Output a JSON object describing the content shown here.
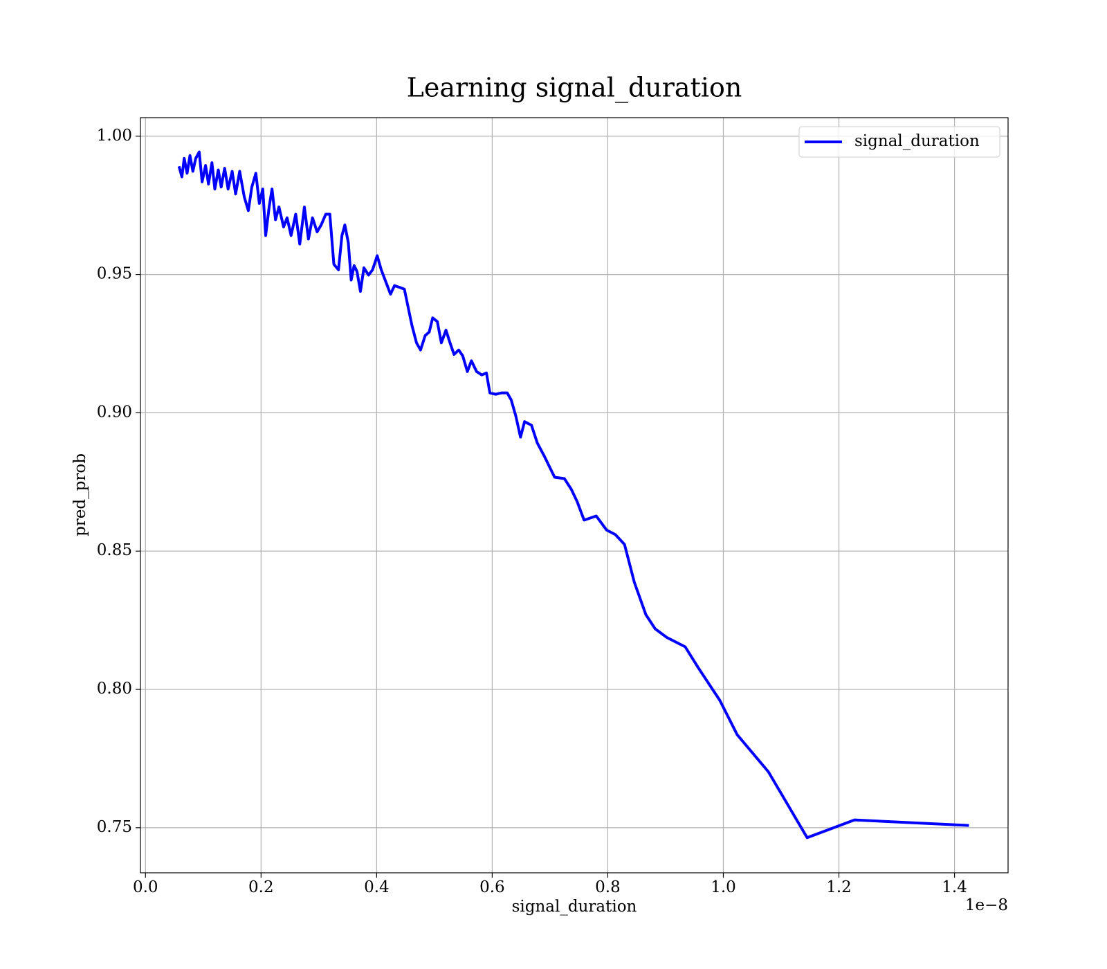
{
  "chart_data": {
    "type": "line",
    "title": "Learning signal_duration",
    "xlabel": "signal_duration",
    "ylabel": "pred_prob",
    "x_offset_label": "1e−8",
    "xlim": [
      -0.0087,
      1.4927
    ],
    "ylim": [
      0.7337,
      1.0067
    ],
    "xticks": [
      {
        "value": 0,
        "label": "0.0"
      },
      0.2,
      0.4,
      0.6,
      0.8,
      {
        "value": 1,
        "label": "1.0"
      },
      1.2,
      1.4
    ],
    "yticks": [
      0.75,
      {
        "value": 0.8,
        "label": "0.80"
      },
      0.85,
      {
        "value": 0.9,
        "label": "0.90"
      },
      0.95,
      {
        "value": 1,
        "label": "1.00"
      }
    ],
    "grid": true,
    "legend": "upper right",
    "x": [
      0.058,
      0.063,
      0.067,
      0.072,
      0.077,
      0.082,
      0.087,
      0.093,
      0.098,
      0.104,
      0.109,
      0.115,
      0.12,
      0.126,
      0.131,
      0.137,
      0.143,
      0.15,
      0.156,
      0.163,
      0.171,
      0.178,
      0.184,
      0.191,
      0.197,
      0.203,
      0.208,
      0.214,
      0.219,
      0.225,
      0.231,
      0.239,
      0.245,
      0.252,
      0.26,
      0.267,
      0.275,
      0.282,
      0.289,
      0.297,
      0.304,
      0.312,
      0.319,
      0.326,
      0.334,
      0.34,
      0.345,
      0.351,
      0.356,
      0.361,
      0.366,
      0.372,
      0.378,
      0.386,
      0.393,
      0.401,
      0.408,
      0.416,
      0.424,
      0.431,
      0.439,
      0.448,
      0.454,
      0.461,
      0.469,
      0.476,
      0.484,
      0.491,
      0.497,
      0.505,
      0.512,
      0.52,
      0.527,
      0.534,
      0.542,
      0.549,
      0.557,
      0.564,
      0.573,
      0.582,
      0.59,
      0.596,
      0.606,
      0.616,
      0.626,
      0.633,
      0.641,
      0.649,
      0.656,
      0.668,
      0.678,
      0.69,
      0.708,
      0.725,
      0.737,
      0.747,
      0.759,
      0.78,
      0.798,
      0.813,
      0.829,
      0.846,
      0.866,
      0.882,
      0.902,
      0.934,
      0.957,
      0.994,
      1.024,
      1.078,
      1.145,
      1.227,
      1.425
    ],
    "series": [
      {
        "name": "signal_duration",
        "color": "#0000ff",
        "values": [
          0.9891,
          0.9853,
          0.992,
          0.9866,
          0.993,
          0.9873,
          0.992,
          0.9943,
          0.9835,
          0.9894,
          0.9827,
          0.9904,
          0.9809,
          0.9878,
          0.9816,
          0.9884,
          0.9809,
          0.9873,
          0.9791,
          0.9873,
          0.978,
          0.9731,
          0.9816,
          0.9866,
          0.9757,
          0.9809,
          0.9641,
          0.9744,
          0.9809,
          0.9698,
          0.9744,
          0.9672,
          0.9705,
          0.9641,
          0.9718,
          0.961,
          0.9744,
          0.9628,
          0.9705,
          0.9654,
          0.9679,
          0.9718,
          0.9718,
          0.9537,
          0.9517,
          0.9641,
          0.9679,
          0.9615,
          0.948,
          0.9532,
          0.9511,
          0.9439,
          0.9524,
          0.9498,
          0.9517,
          0.9568,
          0.9517,
          0.9473,
          0.9429,
          0.946,
          0.9454,
          0.9447,
          0.9387,
          0.9317,
          0.9253,
          0.9227,
          0.9279,
          0.9292,
          0.9343,
          0.933,
          0.9253,
          0.9299,
          0.9253,
          0.9211,
          0.9227,
          0.9206,
          0.9149,
          0.9188,
          0.9149,
          0.9137,
          0.9144,
          0.9072,
          0.9067,
          0.9072,
          0.9072,
          0.9046,
          0.8987,
          0.8912,
          0.8968,
          0.8955,
          0.8891,
          0.8844,
          0.8767,
          0.8762,
          0.8723,
          0.8679,
          0.8612,
          0.8627,
          0.8576,
          0.856,
          0.8524,
          0.8387,
          0.827,
          0.8219,
          0.8188,
          0.8154,
          0.8077,
          0.796,
          0.7836,
          0.7702,
          0.7464,
          0.7528,
          0.7508
        ]
      }
    ]
  }
}
